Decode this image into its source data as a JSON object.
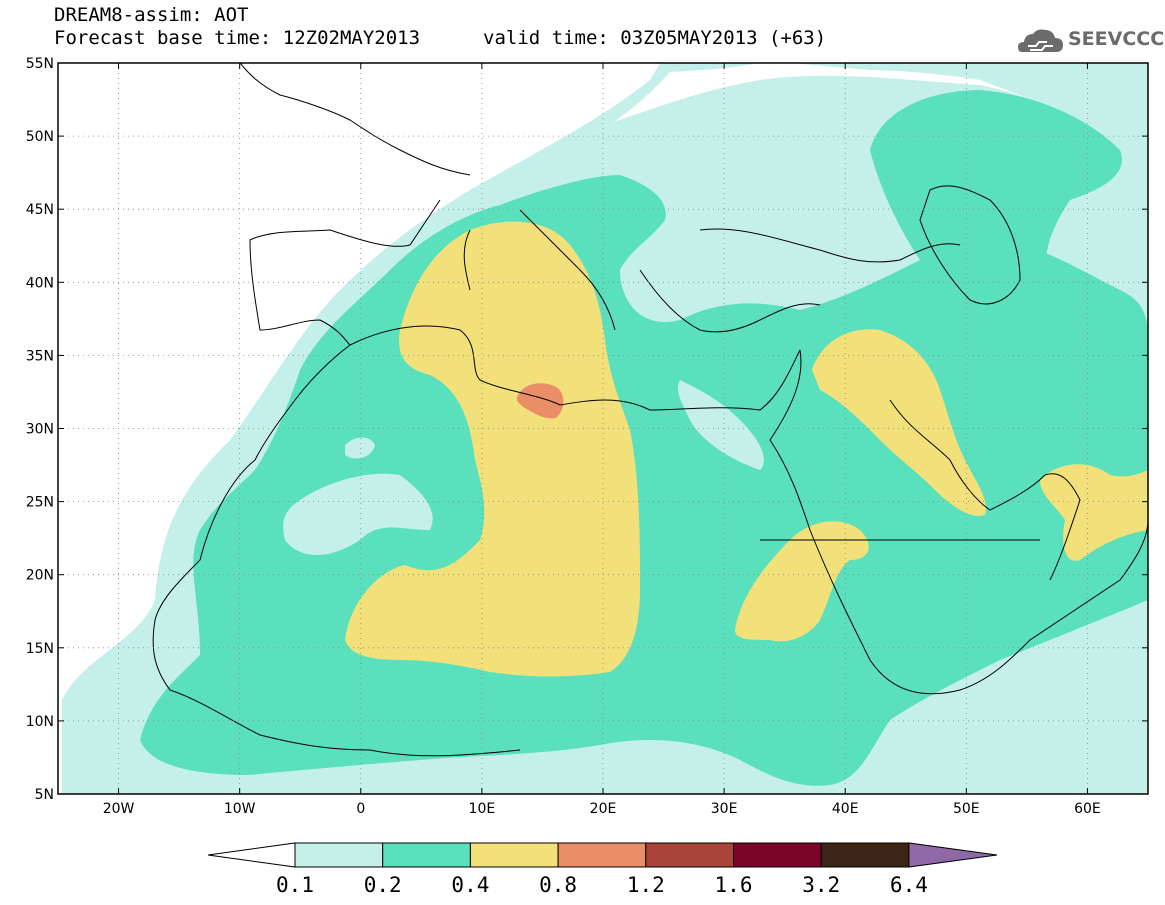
{
  "header": {
    "line1": "DREAM8-assim: AOT",
    "line2": "Forecast base time: 12Z02MAY2013",
    "line2_valid": "valid time: 03Z05MAY2013 (+63)",
    "logo_text": "SEEVCCC",
    "logo_icon": "cloud-logo-icon"
  },
  "map": {
    "lon_range": [
      -25,
      65
    ],
    "lat_range": [
      5,
      55
    ],
    "lon_ticks": [
      {
        "value": -20,
        "label": "20W"
      },
      {
        "value": -10,
        "label": "10W"
      },
      {
        "value": 0,
        "label": "0"
      },
      {
        "value": 10,
        "label": "10E"
      },
      {
        "value": 20,
        "label": "20E"
      },
      {
        "value": 30,
        "label": "30E"
      },
      {
        "value": 40,
        "label": "40E"
      },
      {
        "value": 50,
        "label": "50E"
      },
      {
        "value": 60,
        "label": "60E"
      }
    ],
    "lat_ticks": [
      {
        "value": 55,
        "label": "55N"
      },
      {
        "value": 50,
        "label": "50N"
      },
      {
        "value": 45,
        "label": "45N"
      },
      {
        "value": 40,
        "label": "40N"
      },
      {
        "value": 35,
        "label": "35N"
      },
      {
        "value": 30,
        "label": "30N"
      },
      {
        "value": 25,
        "label": "25N"
      },
      {
        "value": 20,
        "label": "20N"
      },
      {
        "value": 15,
        "label": "15N"
      },
      {
        "value": 10,
        "label": "10N"
      },
      {
        "value": 5,
        "label": "5N"
      }
    ],
    "grid": true
  },
  "colorbar": {
    "labels": [
      "0.1",
      "0.2",
      "0.4",
      "0.8",
      "1.2",
      "1.6",
      "3.2",
      "6.4"
    ],
    "colors": [
      "#ffffff",
      "#c5f0ea",
      "#5ae0bc",
      "#f2e17a",
      "#ea8e68",
      "#a9443a",
      "#7a0528",
      "#3b2517",
      "#8e69a6"
    ]
  }
}
